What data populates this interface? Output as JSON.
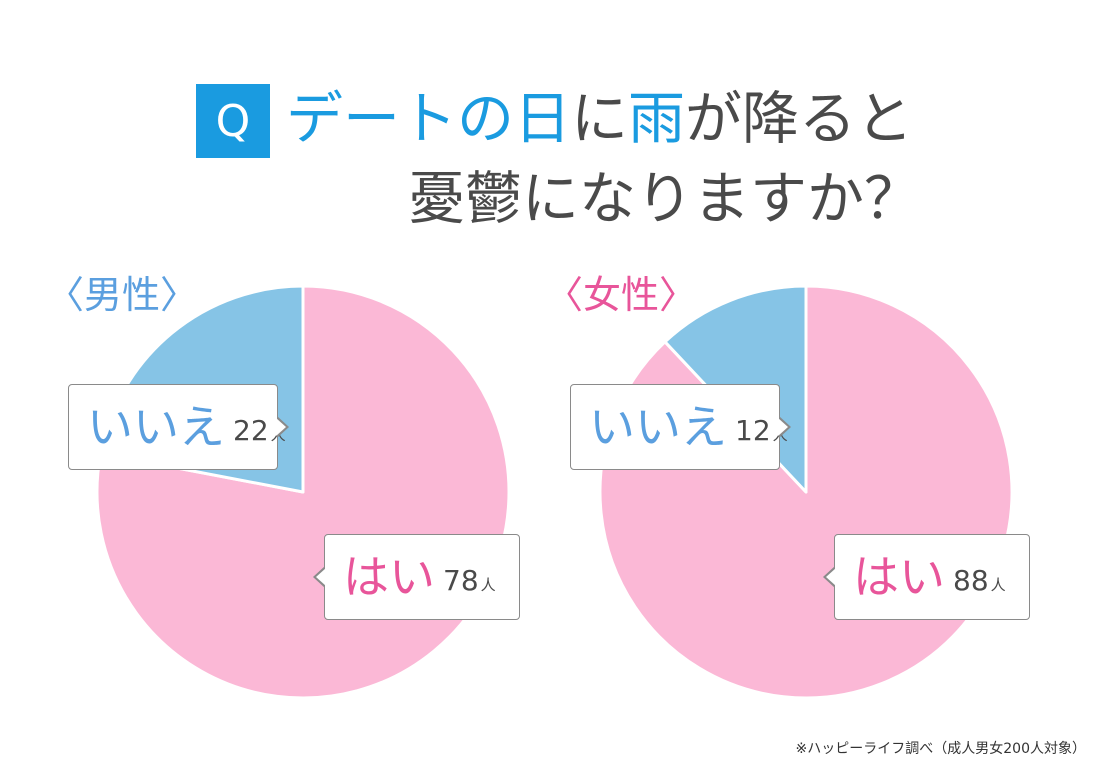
{
  "title": {
    "badge": "Q",
    "line1_parts": [
      {
        "text": "デートの日",
        "accent": true
      },
      {
        "text": "に",
        "accent": false
      },
      {
        "text": "雨",
        "accent": true
      },
      {
        "text": "が降ると",
        "accent": false
      }
    ],
    "line2": "憂鬱になりますか？"
  },
  "colors": {
    "accent": "#1a9be0",
    "male_label": "#5b9fdf",
    "female_label": "#e8559a",
    "hai_slice": "#fbb8d6",
    "iie_slice": "#86c4e6",
    "text_dark": "#4a4a4a"
  },
  "chart_data": [
    {
      "type": "pie",
      "title": "〈男性〉",
      "unit": "人",
      "slices": [
        {
          "label": "はい",
          "value": 78,
          "color": "#fbb8d6"
        },
        {
          "label": "いいえ",
          "value": 22,
          "color": "#86c4e6"
        }
      ]
    },
    {
      "type": "pie",
      "title": "〈女性〉",
      "unit": "人",
      "slices": [
        {
          "label": "はい",
          "value": 88,
          "color": "#fbb8d6"
        },
        {
          "label": "いいえ",
          "value": 12,
          "color": "#86c4e6"
        }
      ]
    }
  ],
  "footnote": "※ハッピーライフ調べ（成人男女200人対象）"
}
